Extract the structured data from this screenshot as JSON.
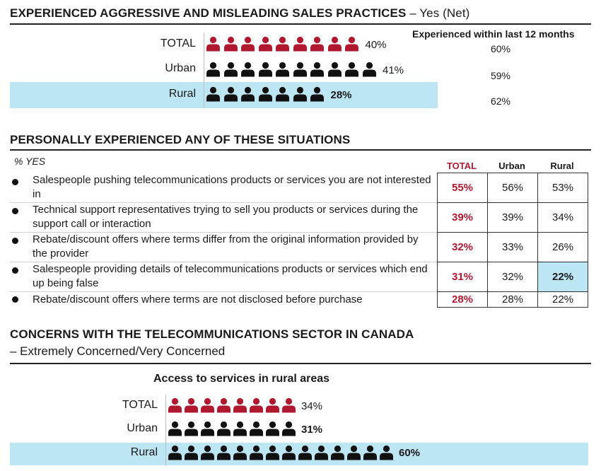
{
  "section1": {
    "title": "EXPERIENCED AGGRESSIVE AND MISLEADING SALES PRACTICES",
    "title_suffix": " – Yes (Net)",
    "chart_data": {
      "type": "bar",
      "categories": [
        "TOTAL",
        "Urban",
        "Rural"
      ],
      "values": [
        40,
        41,
        28
      ],
      "value_labels": [
        "40%",
        "41%",
        "28%"
      ],
      "icon_counts": [
        9,
        10,
        7
      ],
      "colors": [
        "#b0182f",
        "#111111",
        "#111111"
      ]
    },
    "side_header": "Experienced within last 12 months",
    "side_values": [
      "60%",
      "59%",
      "62%"
    ]
  },
  "section2": {
    "title": "PERSONALLY EXPERIENCED ANY OF THESE SITUATIONS",
    "yes_label": "% YES",
    "columns": [
      "TOTAL",
      "Urban",
      "Rural"
    ],
    "rows": [
      {
        "text": "Salespeople pushing telecommunications products or services you are not interested in",
        "values": [
          "55%",
          "56%",
          "53%"
        ]
      },
      {
        "text": "Technical support representatives trying to sell you products or services during the support call or interaction",
        "values": [
          "39%",
          "39%",
          "34%"
        ]
      },
      {
        "text": "Rebate/discount offers where terms differ from the original information provided by the provider",
        "values": [
          "32%",
          "33%",
          "26%"
        ]
      },
      {
        "text": "Salespeople providing details of telecommunications products or services which end up being false",
        "values": [
          "31%",
          "32%",
          "22%"
        ]
      },
      {
        "text": "Rebate/discount offers where terms are not disclosed before purchase",
        "values": [
          "28%",
          "28%",
          "22%"
        ]
      }
    ],
    "highlight_color": "#bde6f4",
    "total_color": "#b0182f"
  },
  "section3": {
    "title": "CONCERNS WITH THE TELECOMMUNICATIONS SECTOR IN CANADA",
    "subtitle": "– Extremely Concerned/Very Concerned",
    "chart_title": "Access to services in rural areas",
    "chart_data": {
      "type": "bar",
      "categories": [
        "TOTAL",
        "Urban",
        "Rural"
      ],
      "values": [
        34,
        31,
        60
      ],
      "value_labels": [
        "34%",
        "31%",
        "60%"
      ],
      "icon_counts": [
        8,
        8,
        14
      ],
      "colors": [
        "#b0182f",
        "#111111",
        "#111111"
      ]
    }
  }
}
